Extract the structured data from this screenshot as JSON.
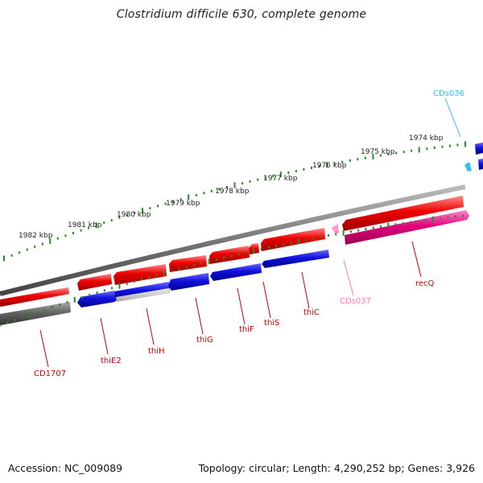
{
  "title": "Clostridium difficile 630, complete genome",
  "footer": {
    "accession": "Accession: NC_009089",
    "summary": "Topology: circular; Length: 4,290,252 bp; Genes: 3,926"
  },
  "colors": {
    "forward_cds": "#ee0000",
    "reverse_cds": "#1111dd",
    "forward_gene": "#e6007e",
    "reverse_gene": "#00a8e8",
    "pseudo": "#ff88cc",
    "backbone": "#888888",
    "tick": "#2a8a2a",
    "forward_label": "#cc0000",
    "cds037_label": "#ff77bb",
    "cds036_label": "#33bbee"
  },
  "scale": {
    "unit": "kbp",
    "labels": [
      "1974 kbp",
      "1975 kbp",
      "1976 kbp",
      "1977 kbp",
      "1978 kbp",
      "1979 kbp",
      "1980 kbp",
      "1981 kbp",
      "1982 kbp"
    ]
  },
  "genes": [
    {
      "name": "CD1707",
      "track": "reverse_gene_gray",
      "color_key": "forward_label"
    },
    {
      "name": "thiE2",
      "track": "reverse",
      "color_key": "forward_label"
    },
    {
      "name": "thiH",
      "track": "reverse",
      "color_key": "forward_label"
    },
    {
      "name": "thiG",
      "track": "reverse",
      "color_key": "forward_label"
    },
    {
      "name": "thiF",
      "track": "reverse",
      "color_key": "forward_label"
    },
    {
      "name": "thiS",
      "track": "reverse",
      "color_key": "forward_label"
    },
    {
      "name": "thiC",
      "track": "reverse",
      "color_key": "forward_label"
    },
    {
      "name": "CDs037",
      "track": "pseudo",
      "color_key": "cds037_label"
    },
    {
      "name": "recQ",
      "track": "forward_gene",
      "color_key": "forward_label"
    },
    {
      "name": "CDs036",
      "track": "forward_gene",
      "color_key": "cds036_label"
    }
  ]
}
